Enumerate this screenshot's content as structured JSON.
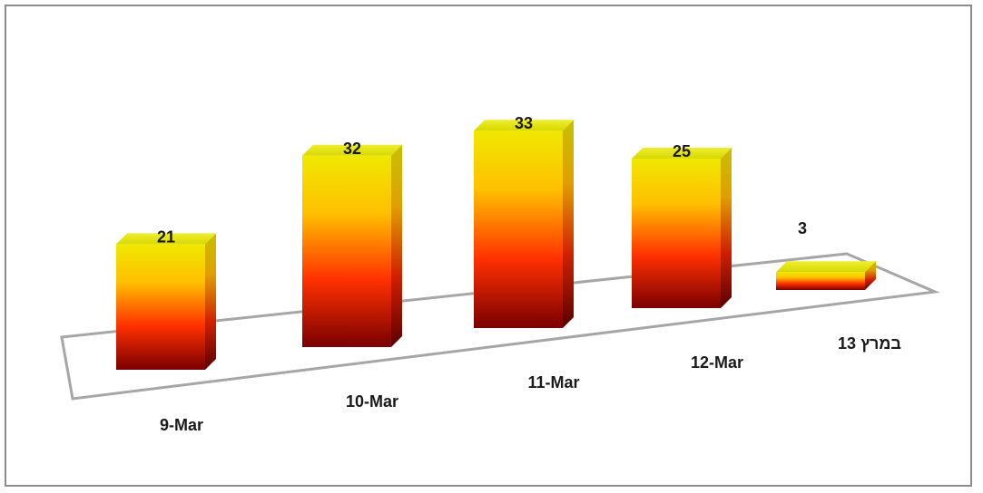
{
  "chart_data": {
    "type": "bar",
    "title": "",
    "xlabel": "",
    "ylabel": "",
    "categories": [
      "9-Mar",
      "10-Mar",
      "11-Mar",
      "12-Mar",
      "13 במרץ"
    ],
    "values": [
      21,
      32,
      33,
      25,
      3
    ],
    "ylim": [
      0,
      35
    ],
    "grid": false,
    "legend": "none",
    "style": "3d-perspective",
    "colors": {
      "top": "#e8e800",
      "upper": "#ffc000",
      "middle": "#ff4000",
      "bottom": "#8b0000",
      "frame": "#8c8c8c",
      "floor": "#a6a6a6"
    }
  }
}
